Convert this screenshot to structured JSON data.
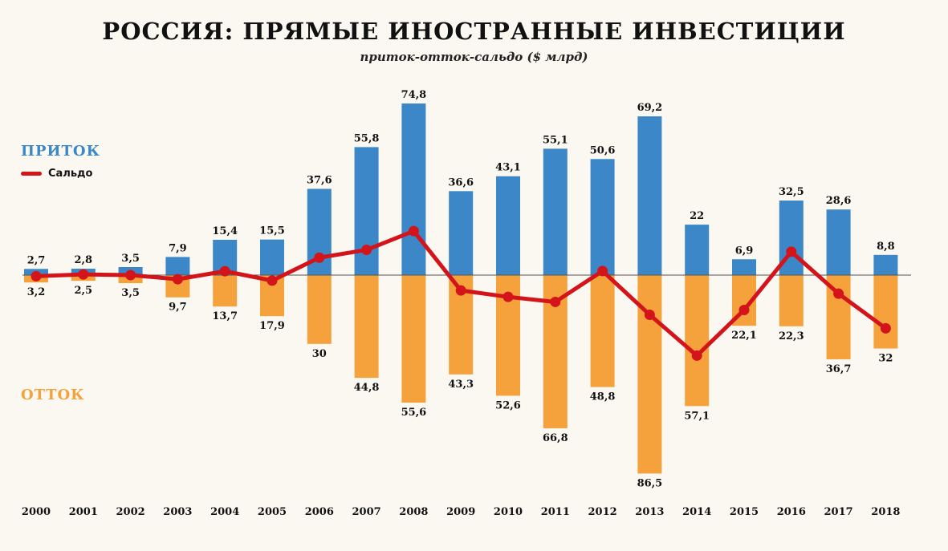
{
  "title": "РОССИЯ: ПРЯМЫЕ ИНОСТРАННЫЕ ИНВЕСТИЦИИ",
  "subtitle": "приток-отток-сальдо ($ млрд)",
  "legend": {
    "inflow": "ПРИТОК",
    "saldo": "Сальдо",
    "outflow": "ОТТОК"
  },
  "colors": {
    "inflow": "#3b87c8",
    "outflow": "#f5a23c",
    "saldo": "#d4141b",
    "background": "#fbf8f1"
  },
  "chart_data": {
    "type": "bar",
    "categories": [
      "2000",
      "2001",
      "2002",
      "2003",
      "2004",
      "2005",
      "2006",
      "2007",
      "2008",
      "2009",
      "2010",
      "2011",
      "2012",
      "2013",
      "2014",
      "2015",
      "2016",
      "2017",
      "2018"
    ],
    "series": [
      {
        "name": "ПРИТОК",
        "values": [
          2.7,
          2.8,
          3.5,
          7.9,
          15.4,
          15.5,
          37.6,
          55.8,
          74.8,
          36.6,
          43.1,
          55.1,
          50.6,
          69.2,
          22,
          6.9,
          32.5,
          28.6,
          8.8
        ],
        "labels": [
          "2,7",
          "2,8",
          "3,5",
          "7,9",
          "15,4",
          "15,5",
          "37,6",
          "55,8",
          "74,8",
          "36,6",
          "43,1",
          "55,1",
          "50,6",
          "69,2",
          "22",
          "6,9",
          "32,5",
          "28,6",
          "8,8"
        ]
      },
      {
        "name": "ОТТОК",
        "values": [
          3.2,
          2.5,
          3.5,
          9.7,
          13.7,
          17.9,
          30,
          44.8,
          55.6,
          43.3,
          52.6,
          66.8,
          48.8,
          86.5,
          57.1,
          22.1,
          22.3,
          36.7,
          32
        ],
        "labels": [
          "3,2",
          "2,5",
          "3,5",
          "9,7",
          "13,7",
          "17,9",
          "30",
          "44,8",
          "55,6",
          "43,3",
          "52,6",
          "66,8",
          "48,8",
          "86,5",
          "57,1",
          "22,1",
          "22,3",
          "36,7",
          "32"
        ]
      },
      {
        "name": "Сальдо",
        "type": "line",
        "values": [
          -0.5,
          0.3,
          0,
          -1.8,
          1.7,
          -2.4,
          7.6,
          11,
          19.2,
          -6.7,
          -9.5,
          -11.7,
          1.8,
          -17.3,
          -35.1,
          -15.2,
          10.2,
          -8.1,
          -23.2
        ]
      }
    ],
    "ylim": [
      -90,
      80
    ]
  }
}
